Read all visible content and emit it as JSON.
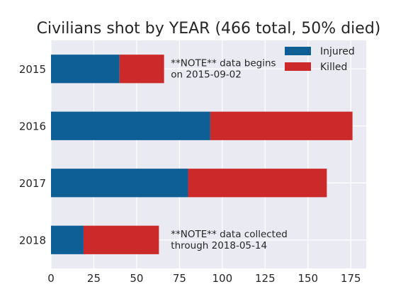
{
  "chart_data": {
    "type": "bar",
    "orientation": "horizontal",
    "stacked": true,
    "title": "Civilians shot by YEAR (466 total, 50% died)",
    "xlabel": "",
    "ylabel": "",
    "categories": [
      "2015",
      "2016",
      "2017",
      "2018"
    ],
    "series": [
      {
        "name": "Injured",
        "color": "#0f5f97",
        "values": [
          40,
          93,
          80,
          19
        ]
      },
      {
        "name": "Killed",
        "color": "#cc2a2a",
        "values": [
          26,
          83,
          81,
          44
        ]
      }
    ],
    "xlim": [
      0,
      184
    ],
    "xticks": [
      0,
      25,
      50,
      75,
      100,
      125,
      150,
      175
    ],
    "grid": true,
    "legend": {
      "placement": "top-right",
      "entries": [
        "Injured",
        "Killed"
      ]
    },
    "annotations": [
      {
        "category": "2015",
        "x": 70,
        "lines": [
          "**NOTE** data begins",
          "on 2015-09-02"
        ]
      },
      {
        "category": "2018",
        "x": 70,
        "lines": [
          "**NOTE** data collected",
          "through 2018-05-14"
        ]
      }
    ]
  },
  "colors": {
    "plot_background": "#eaeaf2",
    "grid": "#ffffff",
    "text": "#262626"
  }
}
